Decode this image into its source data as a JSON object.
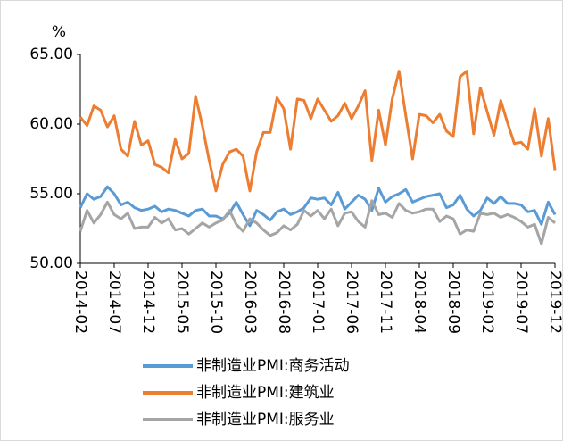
{
  "chart_data": {
    "type": "line",
    "y_unit": "%",
    "categories": [
      "2014-02",
      null,
      null,
      null,
      null,
      "2014-07",
      null,
      null,
      null,
      null,
      "2014-12",
      null,
      null,
      null,
      null,
      "2015-05",
      null,
      null,
      null,
      null,
      "2015-10",
      null,
      null,
      null,
      null,
      "2016-03",
      null,
      null,
      null,
      null,
      "2016-08",
      null,
      null,
      null,
      null,
      "2017-01",
      null,
      null,
      null,
      null,
      "2017-06",
      null,
      null,
      null,
      null,
      "2017-11",
      null,
      null,
      null,
      null,
      "2018-04",
      null,
      null,
      null,
      null,
      "2018-09",
      null,
      null,
      null,
      null,
      "2019-02",
      null,
      null,
      null,
      null,
      "2019-07",
      null,
      null,
      null,
      null,
      "2019-12"
    ],
    "series": [
      {
        "name": "非制造业PMI:商务活动",
        "color": "#5b9bd5",
        "values": [
          54.0,
          55.0,
          54.6,
          54.8,
          55.5,
          55.0,
          54.2,
          54.4,
          54.0,
          53.8,
          53.9,
          54.1,
          53.7,
          53.9,
          53.8,
          53.6,
          53.4,
          53.8,
          53.9,
          53.4,
          53.4,
          53.2,
          53.6,
          54.4,
          53.5,
          52.7,
          53.8,
          53.5,
          53.1,
          53.7,
          53.9,
          53.5,
          53.7,
          54.0,
          54.7,
          54.6,
          54.7,
          54.2,
          55.1,
          53.9,
          54.4,
          54.9,
          54.6,
          53.8,
          55.4,
          54.4,
          54.8,
          55.0,
          55.3,
          54.4,
          54.6,
          54.8,
          54.9,
          55.0,
          54.0,
          54.2,
          54.9,
          53.9,
          53.4,
          53.8,
          54.7,
          54.3,
          54.8,
          54.3,
          54.3,
          54.2,
          53.7,
          53.8,
          52.8,
          54.4,
          53.5
        ]
      },
      {
        "name": "非制造业PMI:建筑业",
        "color": "#ed7d31",
        "values": [
          60.5,
          59.9,
          61.3,
          61.0,
          59.8,
          60.6,
          58.2,
          57.7,
          60.2,
          58.5,
          58.8,
          57.1,
          56.9,
          56.5,
          58.9,
          57.5,
          57.9,
          62.0,
          59.9,
          57.4,
          55.2,
          57.1,
          58.0,
          58.2,
          57.7,
          55.2,
          58.0,
          59.4,
          59.4,
          61.9,
          61.1,
          58.2,
          61.8,
          61.7,
          60.4,
          61.8,
          61.0,
          60.2,
          60.6,
          61.5,
          60.4,
          61.3,
          62.4,
          57.4,
          61.0,
          58.5,
          61.8,
          63.8,
          60.6,
          57.5,
          60.7,
          60.6,
          60.1,
          60.7,
          59.5,
          59.1,
          63.4,
          63.8,
          59.3,
          62.6,
          60.9,
          59.2,
          61.7,
          60.1,
          58.6,
          58.7,
          58.2,
          61.1,
          57.7,
          60.4,
          56.7
        ]
      },
      {
        "name": "非制造业PMI:服务业",
        "color": "#a5a5a5",
        "values": [
          52.3,
          53.8,
          52.9,
          53.5,
          54.4,
          53.5,
          53.2,
          53.6,
          52.5,
          52.6,
          52.6,
          53.3,
          52.9,
          53.2,
          52.4,
          52.5,
          52.1,
          52.5,
          52.9,
          52.6,
          52.9,
          53.1,
          53.8,
          52.8,
          52.3,
          53.2,
          52.9,
          52.4,
          52.0,
          52.2,
          52.7,
          52.4,
          52.8,
          53.8,
          53.4,
          53.8,
          53.2,
          53.9,
          52.7,
          53.6,
          53.7,
          53.0,
          52.6,
          54.5,
          53.5,
          53.6,
          53.3,
          54.3,
          53.8,
          53.6,
          53.7,
          53.9,
          53.9,
          53.0,
          53.4,
          53.2,
          52.1,
          52.4,
          52.3,
          53.6,
          53.5,
          53.6,
          53.3,
          53.5,
          53.3,
          53.0,
          52.6,
          52.8,
          51.4,
          53.3,
          52.9
        ]
      }
    ],
    "ylim": [
      50,
      65
    ],
    "yticks": [
      {
        "value": 50,
        "label": "50.00"
      },
      {
        "value": 55,
        "label": "55.00"
      },
      {
        "value": 60,
        "label": "60.00"
      },
      {
        "value": 65,
        "label": "65.00"
      }
    ]
  }
}
